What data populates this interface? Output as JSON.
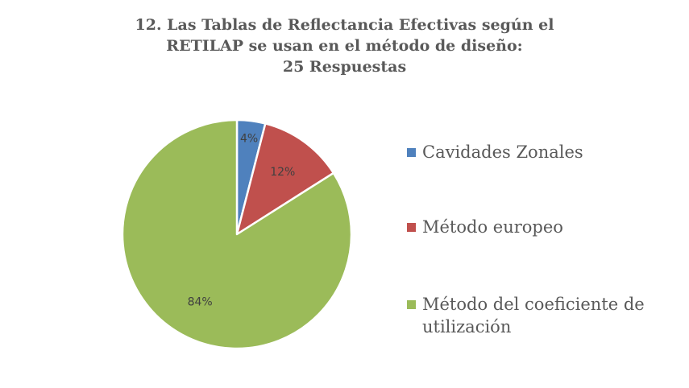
{
  "chart_data": {
    "type": "pie",
    "title_lines": [
      "12. Las Tablas de Reflectancia Efectivas según el",
      "RETILAP se usan en el método de diseño:",
      "25 Respuestas"
    ],
    "categories": [
      "Cavidades Zonales",
      "Método europeo",
      "Método del coeficiente de utilización"
    ],
    "values": [
      4,
      12,
      84
    ],
    "data_labels": [
      "4%",
      "12%",
      "84%"
    ],
    "colors": [
      "#4f81bd",
      "#c0504d",
      "#9bbb59"
    ],
    "legend_position": "right"
  }
}
